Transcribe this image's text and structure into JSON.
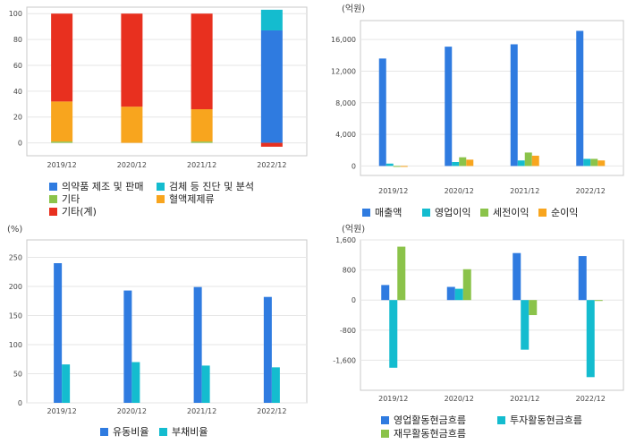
{
  "colors": {
    "blue": "#2f7be0",
    "cyan": "#14bccf",
    "green": "#8bc34a",
    "orange": "#f8a51e",
    "red": "#e8301f",
    "grid": "#e6e6e6",
    "frame": "#c8c8c8"
  },
  "chart_data": [
    {
      "type": "bar",
      "stacked": true,
      "title": "",
      "unit_label": "",
      "categories": [
        "2019/12",
        "2020/12",
        "2021/12",
        "2022/12"
      ],
      "ylim": [
        -10,
        105
      ],
      "yticks": [
        0,
        20,
        40,
        60,
        80,
        100
      ],
      "grid": true,
      "legend_position": "bottom",
      "series": [
        {
          "name": "의약품 제조 및 판매",
          "color": "#2f7be0",
          "values": [
            0,
            0,
            0,
            87
          ]
        },
        {
          "name": "검체 등 진단 및 분석",
          "color": "#14bccf",
          "values": [
            0,
            0,
            0,
            16
          ]
        },
        {
          "name": "기타",
          "color": "#8bc34a",
          "values": [
            1,
            0,
            1,
            0
          ]
        },
        {
          "name": "혈액제제류",
          "color": "#f8a51e",
          "values": [
            31,
            28,
            25,
            0
          ]
        },
        {
          "name": "기타(계)",
          "color": "#e8301f",
          "values": [
            68,
            72,
            74,
            -3
          ]
        }
      ]
    },
    {
      "type": "bar",
      "title": "",
      "unit_label": "(억원)",
      "categories": [
        "2019/12",
        "2020/12",
        "2021/12",
        "2022/12"
      ],
      "ylim": [
        -1200,
        18400
      ],
      "yticks": [
        0,
        4000,
        8000,
        12000,
        16000
      ],
      "ytick_labels": [
        "0",
        "4,000",
        "8,000",
        "12,000",
        "16,000"
      ],
      "grid": true,
      "legend_position": "bottom",
      "series": [
        {
          "name": "매출액",
          "color": "#2f7be0",
          "values": [
            13600,
            15100,
            15400,
            17100
          ]
        },
        {
          "name": "영업이익",
          "color": "#14bccf",
          "values": [
            300,
            500,
            700,
            900
          ]
        },
        {
          "name": "세전이익",
          "color": "#8bc34a",
          "values": [
            0,
            1100,
            1700,
            900
          ]
        },
        {
          "name": "순이익",
          "color": "#f8a51e",
          "values": [
            -100,
            800,
            1300,
            700
          ]
        }
      ]
    },
    {
      "type": "bar",
      "title": "",
      "unit_label": "(%)",
      "categories": [
        "2019/12",
        "2020/12",
        "2021/12",
        "2022/12"
      ],
      "ylim": [
        0,
        280
      ],
      "yticks": [
        0,
        50,
        100,
        150,
        200,
        250
      ],
      "grid": true,
      "legend_position": "bottom",
      "series": [
        {
          "name": "유동비율",
          "color": "#2f7be0",
          "values": [
            240,
            193,
            199,
            182
          ]
        },
        {
          "name": "부채비율",
          "color": "#14bccf",
          "values": [
            66,
            70,
            64,
            61
          ]
        }
      ]
    },
    {
      "type": "bar",
      "title": "",
      "unit_label": "(억원)",
      "categories": [
        "2019/12",
        "2020/12",
        "2021/12",
        "2022/12"
      ],
      "ylim": [
        -2400,
        1600
      ],
      "yticks": [
        -1600,
        -800,
        0,
        800,
        1600
      ],
      "ytick_labels": [
        "-1,600",
        "-800",
        "0",
        "800",
        "1,600"
      ],
      "grid": true,
      "legend_position": "bottom",
      "series": [
        {
          "name": "영업활동현금흐름",
          "color": "#2f7be0",
          "values": [
            400,
            350,
            1250,
            1170
          ]
        },
        {
          "name": "투자활동현금흐름",
          "color": "#14bccf",
          "values": [
            -1800,
            300,
            -1320,
            -2050
          ]
        },
        {
          "name": "재무활동현금흐름",
          "color": "#8bc34a",
          "values": [
            1420,
            820,
            -400,
            -20
          ]
        }
      ]
    }
  ]
}
